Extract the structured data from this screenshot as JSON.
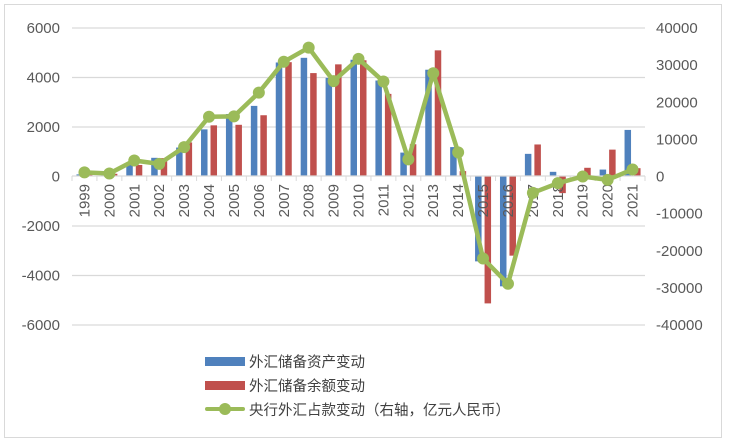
{
  "chart_data": {
    "type": "bar",
    "title": "",
    "xlabel": "",
    "ylabel": "",
    "categories": [
      "1999",
      "2000",
      "2001",
      "2002",
      "2003",
      "2004",
      "2005",
      "2006",
      "2007",
      "2008",
      "2009",
      "2010",
      "2011",
      "2012",
      "2013",
      "2014",
      "2015",
      "2016",
      "2017",
      "2018",
      "2019",
      "2020",
      "2021"
    ],
    "series": [
      {
        "name": "外汇储备资产变动",
        "type": "bar",
        "axis": "left",
        "color": "#4f81bd",
        "values": [
          85,
          105,
          473,
          755,
          1170,
          1904,
          2526,
          2853,
          4607,
          4795,
          3984,
          4717,
          3878,
          966,
          4314,
          1188,
          -3429,
          -4437,
          915,
          189,
          20,
          280,
          1882
        ]
      },
      {
        "name": "外汇储备余额变动",
        "type": "bar",
        "axis": "left",
        "color": "#c0504d",
        "values": [
          97,
          109,
          466,
          742,
          1377,
          2067,
          2089,
          2475,
          4619,
          4178,
          4531,
          4696,
          3338,
          1304,
          5097,
          217,
          -5127,
          -3198,
          1294,
          -672,
          352,
          1086,
          336
        ]
      },
      {
        "name": "央行外汇占款变动（右轴，亿元人民币）",
        "type": "line",
        "axis": "right",
        "color": "#9bbb59",
        "values": [
          1100,
          800,
          4300,
          3400,
          7900,
          16100,
          16200,
          22600,
          30900,
          34700,
          25700,
          31700,
          25600,
          4600,
          27800,
          6500,
          -22100,
          -28900,
          -4400,
          -1800,
          0,
          -900,
          1900
        ]
      }
    ],
    "y_left": {
      "min": -6000,
      "max": 6000,
      "ticks": [
        6000,
        4000,
        2000,
        0,
        -2000,
        -4000,
        -6000
      ]
    },
    "y_right": {
      "min": -40000,
      "max": 40000,
      "ticks": [
        40000,
        30000,
        20000,
        10000,
        0,
        -10000,
        -20000,
        -30000,
        -40000
      ]
    },
    "grid": true,
    "legend_position": "bottom-center"
  },
  "legend": {
    "items": [
      {
        "label": "外汇储备资产变动",
        "color": "#4f81bd"
      },
      {
        "label": "外汇储备余额变动",
        "color": "#c0504d"
      },
      {
        "label": "央行外汇占款变动（右轴，亿元人民币）",
        "color": "#9bbb59"
      }
    ]
  }
}
